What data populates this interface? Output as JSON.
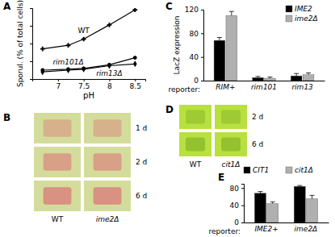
{
  "chart_data": [
    {
      "type": "line",
      "title": "A",
      "xlabel": "pH",
      "ylabel": "Sporul. (% of total cells)",
      "x": [
        6.7,
        7.2,
        7.5,
        8,
        8.5
      ],
      "xlim": [
        6.5,
        8.7
      ],
      "xticks": [
        7,
        7.5,
        8,
        8.5
      ],
      "ylim": [
        0,
        80
      ],
      "yticks": [
        0,
        20,
        40,
        60,
        80
      ],
      "tick_labels": "x",
      "series": [
        {
          "name": "WT",
          "color": "#000000",
          "marker": "plus",
          "values": [
            34,
            38,
            45,
            61,
            78
          ],
          "errors": [
            2,
            2,
            2,
            2,
            2
          ]
        },
        {
          "name": "rim101Δ",
          "color": "#000000",
          "marker": "circle",
          "values": [
            10,
            11,
            12,
            16,
            24
          ],
          "errors": [
            1.5,
            1.5,
            1.5,
            2,
            2
          ]
        },
        {
          "name": "rim13Δ",
          "color": "#000000",
          "marker": "diamond",
          "values": [
            8,
            10,
            11,
            15,
            17
          ],
          "errors": [
            1.5,
            1.5,
            1.5,
            2,
            2
          ]
        }
      ]
    },
    {
      "type": "bar",
      "title": "C",
      "xlabel": "reporter:",
      "ylabel": "LacZ expression",
      "categories": [
        "RIM+",
        "rim101",
        "rim13"
      ],
      "ylim": [
        0,
        120
      ],
      "yticks": [
        0,
        40,
        80,
        120
      ],
      "legend": "upper right",
      "series": [
        {
          "name": "IME2",
          "color": "#000000",
          "values": [
            68,
            5,
            8
          ],
          "errors": [
            5,
            2,
            4
          ]
        },
        {
          "name": "ime2Δ",
          "color": "#b0b0b0",
          "values": [
            110,
            4,
            10
          ],
          "errors": [
            7,
            2,
            3
          ]
        }
      ]
    },
    {
      "type": "bar",
      "title": "E",
      "xlabel": "reporter:",
      "categories": [
        "IME2+",
        "ime2Δ"
      ],
      "ylim": [
        0,
        90
      ],
      "yticks": [
        0,
        40,
        80
      ],
      "legend": "top",
      "series": [
        {
          "name": "CIT1",
          "color": "#000000",
          "values": [
            68,
            84
          ],
          "errors": [
            4,
            2
          ]
        },
        {
          "name": "cit1Δ",
          "color": "#b0b0b0",
          "values": [
            44,
            55
          ],
          "errors": [
            4,
            8
          ]
        }
      ]
    }
  ],
  "photos": [
    {
      "label": "B",
      "columns": [
        "WT",
        "ime2Δ"
      ],
      "rows": [
        "1 d",
        "2 d",
        "6 d"
      ],
      "background": "#d4dc9c",
      "patch": "#d98c80"
    },
    {
      "label": "D",
      "columns": [
        "WT",
        "cit1Δ"
      ],
      "rows": [
        "2 d",
        "6 d"
      ],
      "background": "#b8e040",
      "patch": "#88b828"
    }
  ]
}
